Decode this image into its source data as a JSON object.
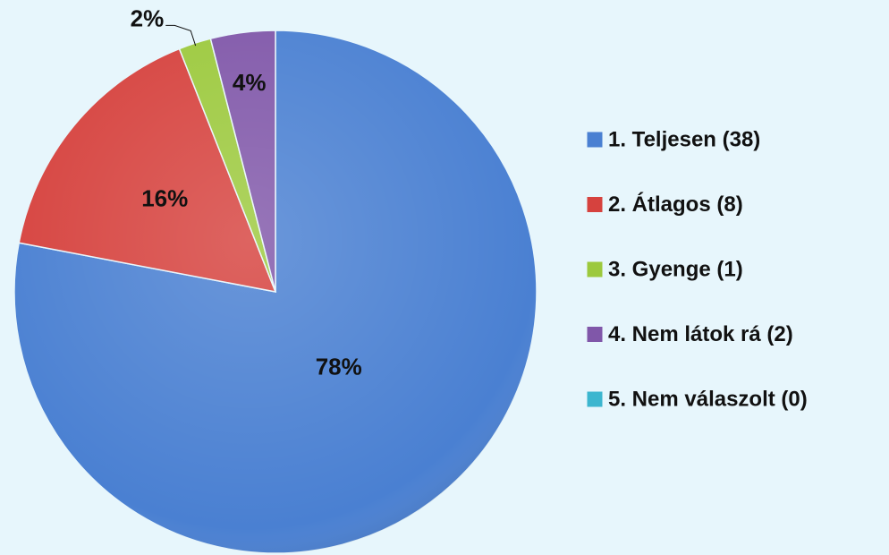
{
  "chart_data": {
    "type": "pie",
    "categories": [
      "1. Teljesen (38)",
      "2. Átlagos (8)",
      "3. Gyenge (1)",
      "4. Nem látok rá (2)",
      "5. Nem válaszolt (0)"
    ],
    "values": [
      78,
      16,
      2,
      4,
      0
    ],
    "value_labels": [
      "78%",
      "16%",
      "2%",
      "4%",
      null
    ],
    "colors": [
      "#4a80d2",
      "#d6423e",
      "#9cc93d",
      "#8057a9",
      "#3cb6cf"
    ],
    "legend": "right"
  }
}
